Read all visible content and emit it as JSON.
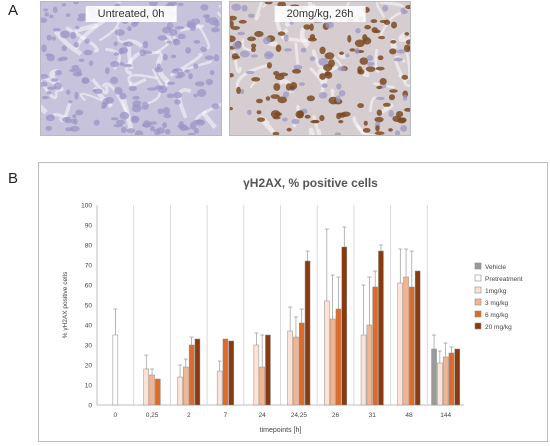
{
  "panel_a": {
    "letter": "A",
    "images": [
      {
        "label": "Untreated, 0h",
        "tissue_color": "#c8c3dc",
        "nuclei_color": "#8f8bbd",
        "positive_fraction": 0.0
      },
      {
        "label": "20mg/kg, 26h",
        "tissue_color": "#d6cdd0",
        "nuclei_color": "#7a4a22",
        "positive_fraction": 0.65
      }
    ]
  },
  "panel_b": {
    "letter": "B"
  },
  "chart_data": {
    "type": "bar",
    "title": "γH2AX, % positive cells",
    "xlabel": "timepoints [h]",
    "ylabel": "% γH2AX positive cells",
    "ylim": [
      0,
      100
    ],
    "yticks": [
      0,
      10,
      20,
      30,
      40,
      50,
      60,
      70,
      80,
      90,
      100
    ],
    "grid": "vertical",
    "legend_position": "right",
    "categories": [
      "0",
      "0,25",
      "2",
      "7",
      "24",
      "24,25",
      "26",
      "31",
      "48",
      "144"
    ],
    "series": [
      {
        "name": "Vehicle",
        "color": "#9a9a9a",
        "values": [
          null,
          null,
          null,
          null,
          null,
          null,
          null,
          null,
          null,
          28
        ],
        "errors": [
          null,
          null,
          null,
          null,
          null,
          null,
          null,
          null,
          null,
          7
        ]
      },
      {
        "name": "Pretreatment",
        "color": "#ffffff",
        "values": [
          35,
          null,
          null,
          null,
          null,
          null,
          null,
          null,
          null,
          null
        ],
        "errors": [
          13,
          null,
          null,
          null,
          null,
          null,
          null,
          null,
          null,
          null
        ]
      },
      {
        "name": "1mg/kg",
        "color": "#fde3d6",
        "values": [
          null,
          18,
          14,
          17,
          30,
          37,
          52,
          35,
          61,
          21
        ],
        "errors": [
          null,
          7,
          6,
          5,
          6,
          12,
          36,
          25,
          17,
          6
        ]
      },
      {
        "name": "3 mg/kg",
        "color": "#f4b48f",
        "values": [
          null,
          15,
          19,
          null,
          19,
          34,
          43,
          40,
          64,
          24
        ],
        "errors": [
          null,
          3,
          4,
          null,
          16,
          10,
          22,
          24,
          14,
          7
        ]
      },
      {
        "name": "6 mg/kg",
        "color": "#e06a26",
        "values": [
          null,
          13,
          30,
          33,
          null,
          41,
          48,
          59,
          59,
          26
        ],
        "errors": [
          null,
          null,
          4,
          null,
          null,
          7,
          16,
          8,
          18,
          3
        ]
      },
      {
        "name": "20 mg/kg",
        "color": "#8a3a0e",
        "values": [
          null,
          null,
          33,
          32,
          35,
          72,
          79,
          77,
          67,
          28
        ],
        "errors": [
          null,
          null,
          null,
          null,
          null,
          5,
          10,
          3,
          null,
          null
        ]
      }
    ]
  }
}
